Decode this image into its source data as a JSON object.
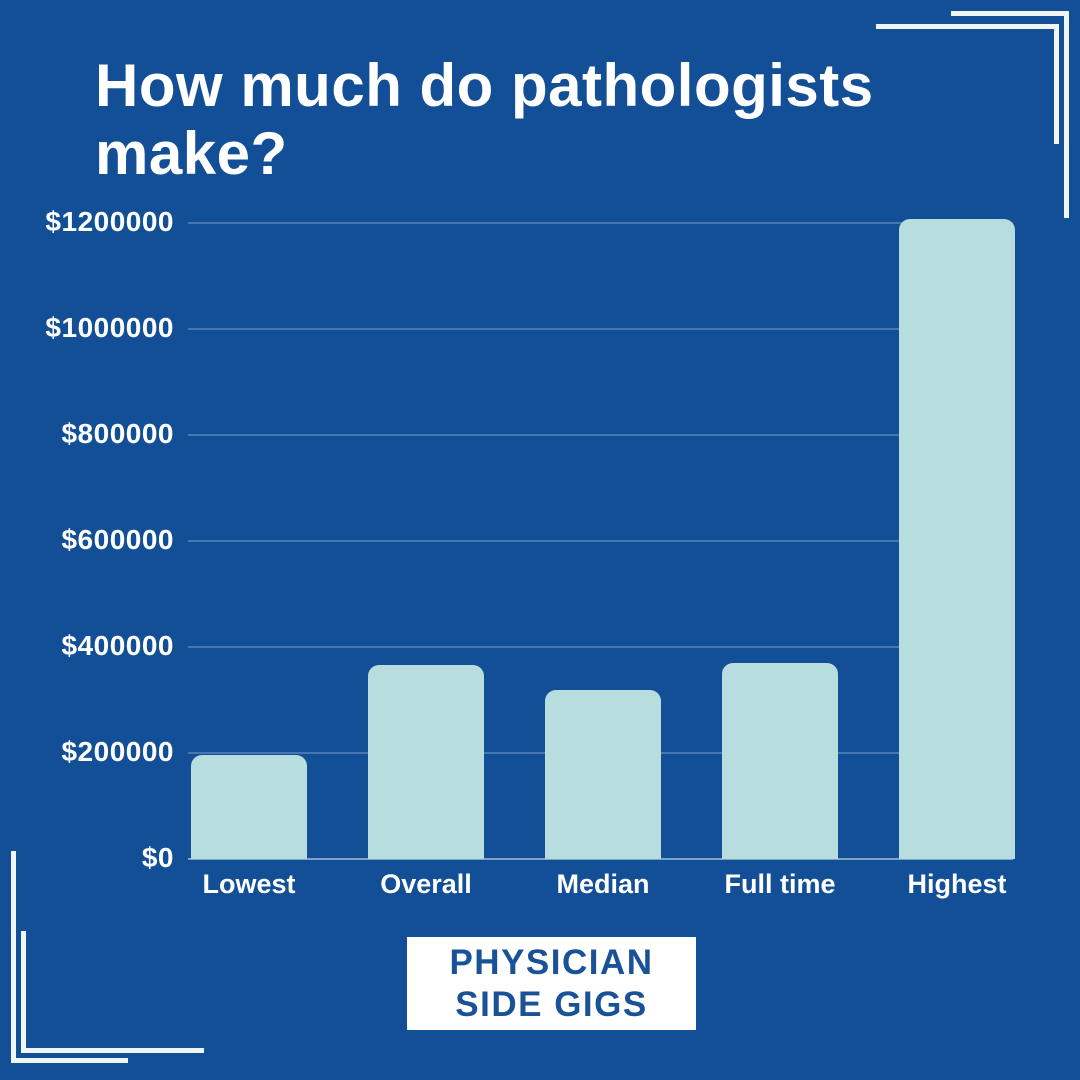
{
  "page": {
    "background_color": "#134F97",
    "corner_line_color": "#EFF6F3"
  },
  "header": {
    "title": "How much do pathologists make?",
    "title_line1": "How much do pathologists",
    "title_line2": "make?"
  },
  "chart_data": {
    "type": "bar",
    "title": "How much do pathologists make?",
    "categories": [
      "Lowest",
      "Overall",
      "Median",
      "Full time",
      "Highest"
    ],
    "values": [
      197000,
      366000,
      318000,
      369000,
      1208000
    ],
    "yticks": [
      {
        "value": 0,
        "label": "$0"
      },
      {
        "value": 200000,
        "label": "$200000"
      },
      {
        "value": 400000,
        "label": "$400000"
      },
      {
        "value": 600000,
        "label": "$600000"
      },
      {
        "value": 800000,
        "label": "$800000"
      },
      {
        "value": 1000000,
        "label": "$1000000"
      },
      {
        "value": 1200000,
        "label": "$1200000"
      }
    ],
    "ylim": [
      0,
      1260000
    ],
    "xlabel": "",
    "ylabel": "",
    "grid": true,
    "legend": false,
    "bar_color": "#B7DDDE",
    "label_color": "#FFFFFF"
  },
  "logo": {
    "line1": "PHYSICIAN",
    "line2": "SIDE GIGS",
    "text_color": "#1A5298",
    "background_color": "#FFFFFF"
  }
}
